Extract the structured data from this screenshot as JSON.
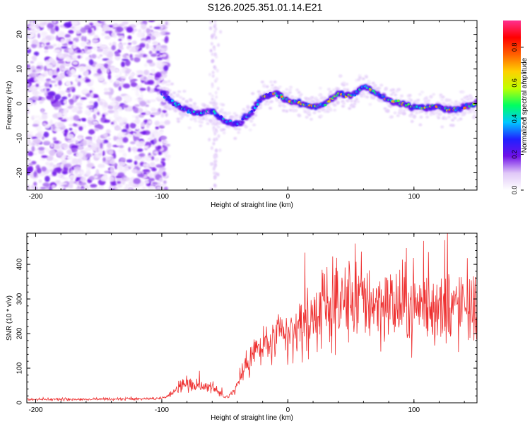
{
  "title": "S126.2025.351.01.14.E21",
  "chart_data": [
    {
      "type": "heatmap",
      "panel": "spectrogram",
      "xlabel": "Height of straight line (km)",
      "ylabel": "Frequency (Hz)",
      "xlim": [
        -207,
        150
      ],
      "ylim": [
        -25,
        24
      ],
      "xticks": [
        -200,
        -100,
        0,
        100
      ],
      "xtick_labels": [
        "-200",
        "-100",
        "0",
        "100"
      ],
      "yticks": [
        -20,
        -10,
        0,
        10,
        20
      ],
      "ytick_labels": [
        "-20",
        "-10",
        "0",
        "10",
        "20"
      ],
      "colorbar": {
        "label": "Normalized spectral amplitude",
        "range": [
          0,
          0.95
        ],
        "ticks": [
          0,
          0.2,
          0.4,
          0.6,
          0.8
        ],
        "tick_labels": [
          "0.0",
          "0.2",
          "0.4",
          "0.6",
          "0.8"
        ],
        "colormap": [
          "#ffffff",
          "#e0c8f8",
          "#7010e8",
          "#2020ff",
          "#00c8ff",
          "#00ff60",
          "#c0ff00",
          "#ffd000",
          "#ff6000",
          "#ff0000",
          "#ff3090"
        ]
      },
      "ridge": {
        "x": [
          -100,
          -90,
          -80,
          -70,
          -60,
          -50,
          -40,
          -30,
          -20,
          -10,
          0,
          10,
          20,
          30,
          40,
          50,
          60,
          70,
          80,
          90,
          100,
          110,
          120,
          130,
          140,
          150
        ],
        "frequency": [
          3,
          0,
          -2,
          -3,
          -2,
          -5,
          -6,
          -3,
          2,
          3,
          1,
          0,
          -1,
          0,
          3,
          2,
          5,
          3,
          1,
          0,
          -1,
          -1,
          -1,
          -2,
          -1,
          0
        ]
      }
    },
    {
      "type": "line",
      "panel": "snr",
      "xlabel": "Height of straight line (km)",
      "ylabel": "SNR (10 * v/v)",
      "xlim": [
        -207,
        150
      ],
      "ylim": [
        0,
        490
      ],
      "xticks": [
        -200,
        -100,
        0,
        100
      ],
      "xtick_labels": [
        "-200",
        "-100",
        "0",
        "100"
      ],
      "yticks": [
        0,
        100,
        200,
        300,
        400
      ],
      "ytick_labels": [
        "0",
        "100",
        "200",
        "300",
        "400"
      ],
      "color": "#ee3030",
      "series": [
        {
          "name": "SNR envelope",
          "x": [
            -207,
            -170,
            -120,
            -100,
            -95,
            -90,
            -85,
            -80,
            -70,
            -60,
            -55,
            -50,
            -45,
            -40,
            -35,
            -30,
            -25,
            -20,
            -15,
            -10,
            -5,
            0,
            5,
            10,
            20,
            30,
            40,
            50,
            60,
            70,
            80,
            90,
            100,
            110,
            120,
            130,
            140,
            150
          ],
          "values": [
            10,
            10,
            11,
            13,
            20,
            35,
            50,
            55,
            50,
            45,
            30,
            15,
            25,
            50,
            100,
            130,
            150,
            160,
            170,
            185,
            190,
            185,
            205,
            215,
            250,
            275,
            285,
            295,
            300,
            290,
            285,
            275,
            285,
            275,
            270,
            270,
            275,
            285
          ]
        }
      ]
    }
  ]
}
